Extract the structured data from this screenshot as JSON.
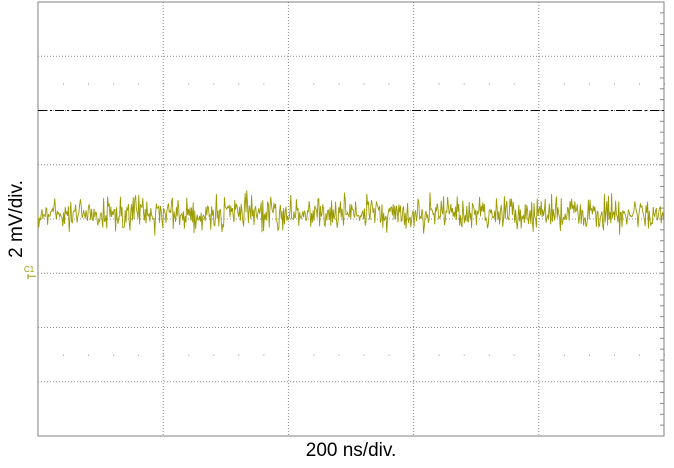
{
  "chart_data": {
    "type": "line",
    "xlabel": "200 ns/div.",
    "ylabel": "2 mV/div.",
    "divisions": {
      "horizontal": 5,
      "vertical": 8
    },
    "channel_marker": "C1",
    "reference_line_divisions_above_ground": 3,
    "series": [
      {
        "mean_divisions_above_ground": 1.1,
        "peak_to_peak_divisions": 0.9,
        "style": "random noise"
      }
    ],
    "grid": true,
    "colors": {
      "trace": "#9a9a00",
      "grid": "#8a8a8a",
      "frame": "#808080",
      "reference": "#000000"
    }
  }
}
